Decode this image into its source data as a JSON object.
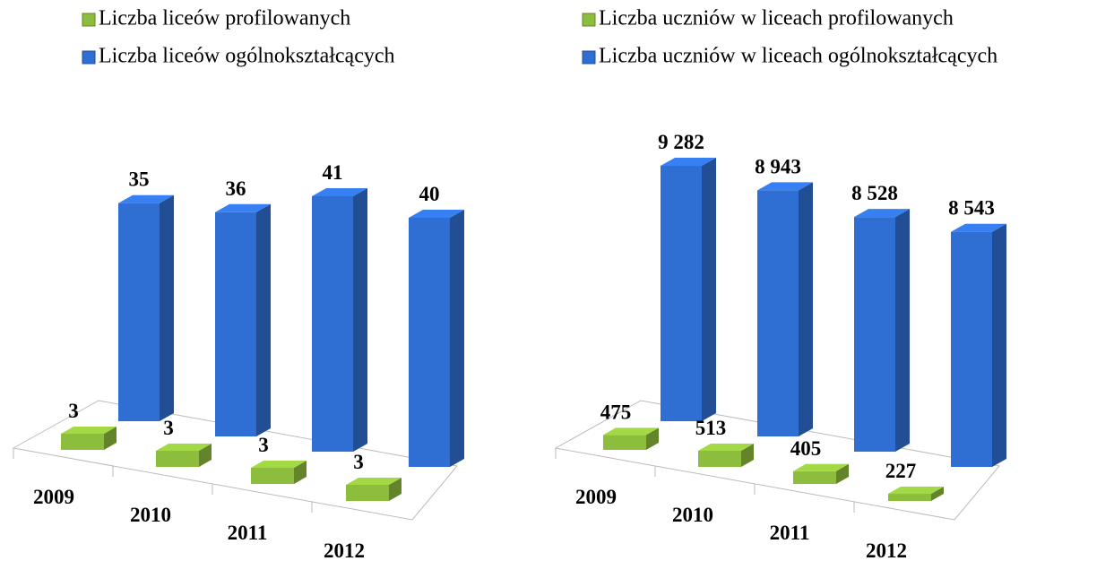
{
  "chart_data": [
    {
      "type": "bar3d",
      "categories": [
        "2009",
        "2010",
        "2011",
        "2012"
      ],
      "series": [
        {
          "name": "Liczba liceów profilowanych",
          "color": "#8dbd3c",
          "values": [
            3,
            3,
            3,
            3
          ]
        },
        {
          "name": "Liczba liceów ogólnokształcących",
          "color": "#2f6fd3",
          "values": [
            35,
            36,
            41,
            40
          ]
        }
      ]
    },
    {
      "type": "bar3d",
      "categories": [
        "2009",
        "2010",
        "2011",
        "2012"
      ],
      "series": [
        {
          "name": "Liczba uczniów w liceach profilowanych",
          "color": "#8dbd3c",
          "values": [
            475,
            513,
            405,
            227
          ]
        },
        {
          "name": "Liczba uczniów w liceach ogólnokształcących",
          "color": "#2f6fd3",
          "values": [
            9282,
            8943,
            8528,
            8543
          ],
          "value_labels": [
            "9 282",
            "8 943",
            "8 528",
            "8 543"
          ]
        }
      ]
    }
  ]
}
